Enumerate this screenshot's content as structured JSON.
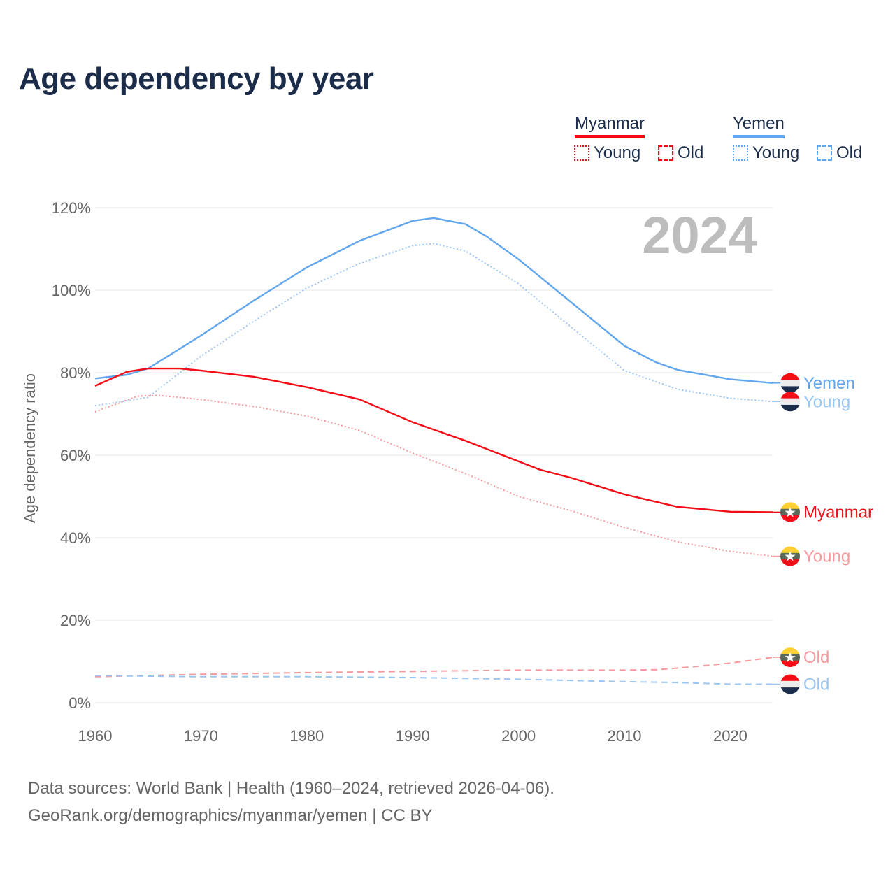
{
  "title": "Age dependency by year",
  "legend": {
    "groups": [
      {
        "country": "Myanmar",
        "color": "#f20d17",
        "young": "Young",
        "old": "Old"
      },
      {
        "country": "Yemen",
        "color": "#62a6ee",
        "young": "Young",
        "old": "Old"
      }
    ]
  },
  "footer": {
    "line1": "Data sources: World Bank | Health (1960–2024, retrieved 2026-04-06).",
    "line2": "GeoRank.org/demographics/myanmar/yemen | CC BY"
  },
  "chart_data": {
    "type": "line",
    "title": "Age dependency by year",
    "year_label": "2024",
    "ylabel": "Age dependency ratio",
    "xlabel": "",
    "xlim": [
      1960,
      2024
    ],
    "ylim": [
      0,
      120
    ],
    "xticks": [
      1960,
      1970,
      1980,
      1990,
      2000,
      2010,
      2020
    ],
    "yticks": [
      0,
      20,
      40,
      60,
      80,
      100,
      120
    ],
    "ytick_labels": [
      "0%",
      "20%",
      "40%",
      "60%",
      "80%",
      "100%",
      "120%"
    ],
    "grid": true,
    "legend_position": "top-right",
    "series": [
      {
        "name": "Yemen",
        "end_label": "Yemen",
        "country": "yemen",
        "style": "solid",
        "color": "#62a6ee",
        "label_color": "#62a6ee",
        "points": [
          [
            1960,
            78.6
          ],
          [
            1963,
            79.5
          ],
          [
            1965,
            81
          ],
          [
            1970,
            89
          ],
          [
            1975,
            97.5
          ],
          [
            1980,
            105.5
          ],
          [
            1985,
            112
          ],
          [
            1990,
            116.8
          ],
          [
            1992,
            117.5
          ],
          [
            1995,
            116
          ],
          [
            1997,
            113
          ],
          [
            2000,
            107.5
          ],
          [
            2005,
            97
          ],
          [
            2010,
            86.5
          ],
          [
            2013,
            82.5
          ],
          [
            2015,
            80.7
          ],
          [
            2020,
            78.4
          ],
          [
            2024,
            77.5
          ]
        ]
      },
      {
        "name": "Yemen Young",
        "end_label": "Young",
        "country": "yemen",
        "style": "dotted",
        "color": "#9cc6f2",
        "label_color": "#9cc6f2",
        "points": [
          [
            1960,
            72
          ],
          [
            1965,
            74
          ],
          [
            1970,
            84
          ],
          [
            1975,
            92.5
          ],
          [
            1980,
            100.5
          ],
          [
            1985,
            106.5
          ],
          [
            1990,
            110.8
          ],
          [
            1992,
            111.3
          ],
          [
            1995,
            109.5
          ],
          [
            2000,
            101.5
          ],
          [
            2005,
            91
          ],
          [
            2010,
            80.5
          ],
          [
            2015,
            76
          ],
          [
            2020,
            73.8
          ],
          [
            2024,
            73
          ]
        ]
      },
      {
        "name": "Myanmar",
        "end_label": "Myanmar",
        "country": "myanmar",
        "style": "solid",
        "color": "#f20d17",
        "label_color": "#f20d17",
        "points": [
          [
            1960,
            76.8
          ],
          [
            1963,
            80.2
          ],
          [
            1965,
            81
          ],
          [
            1968,
            81
          ],
          [
            1970,
            80.5
          ],
          [
            1975,
            79
          ],
          [
            1980,
            76.5
          ],
          [
            1985,
            73.5
          ],
          [
            1990,
            68
          ],
          [
            1995,
            63.5
          ],
          [
            2000,
            58.5
          ],
          [
            2002,
            56.5
          ],
          [
            2005,
            54.5
          ],
          [
            2010,
            50.5
          ],
          [
            2015,
            47.5
          ],
          [
            2020,
            46.3
          ],
          [
            2024,
            46.2
          ]
        ]
      },
      {
        "name": "Myanmar Young",
        "end_label": "Young",
        "country": "myanmar",
        "style": "dotted",
        "color": "#f59a9e",
        "label_color": "#f59a9e",
        "points": [
          [
            1960,
            70.5
          ],
          [
            1964,
            74.3
          ],
          [
            1966,
            74.5
          ],
          [
            1970,
            73.5
          ],
          [
            1975,
            71.8
          ],
          [
            1980,
            69.5
          ],
          [
            1985,
            66
          ],
          [
            1990,
            60.5
          ],
          [
            1995,
            55.5
          ],
          [
            2000,
            50
          ],
          [
            2005,
            46.5
          ],
          [
            2010,
            42.5
          ],
          [
            2015,
            39
          ],
          [
            2020,
            36.7
          ],
          [
            2024,
            35.5
          ]
        ]
      },
      {
        "name": "Myanmar Old",
        "end_label": "Old",
        "country": "myanmar",
        "style": "dashed",
        "color": "#f59a9e",
        "label_color": "#f59a9e",
        "points": [
          [
            1960,
            6.3
          ],
          [
            1970,
            6.9
          ],
          [
            1980,
            7.3
          ],
          [
            1990,
            7.6
          ],
          [
            2000,
            7.9
          ],
          [
            2010,
            7.9
          ],
          [
            2013,
            8.0
          ],
          [
            2016,
            8.6
          ],
          [
            2020,
            9.6
          ],
          [
            2024,
            11
          ]
        ]
      },
      {
        "name": "Yemen Old",
        "end_label": "Old",
        "country": "yemen",
        "style": "dashed",
        "color": "#9cc6f2",
        "label_color": "#9cc6f2",
        "points": [
          [
            1960,
            6.6
          ],
          [
            1970,
            6.3
          ],
          [
            1980,
            6.3
          ],
          [
            1990,
            6.1
          ],
          [
            2000,
            5.7
          ],
          [
            2010,
            5.1
          ],
          [
            2015,
            4.9
          ],
          [
            2020,
            4.5
          ],
          [
            2024,
            4.5
          ]
        ]
      }
    ]
  }
}
